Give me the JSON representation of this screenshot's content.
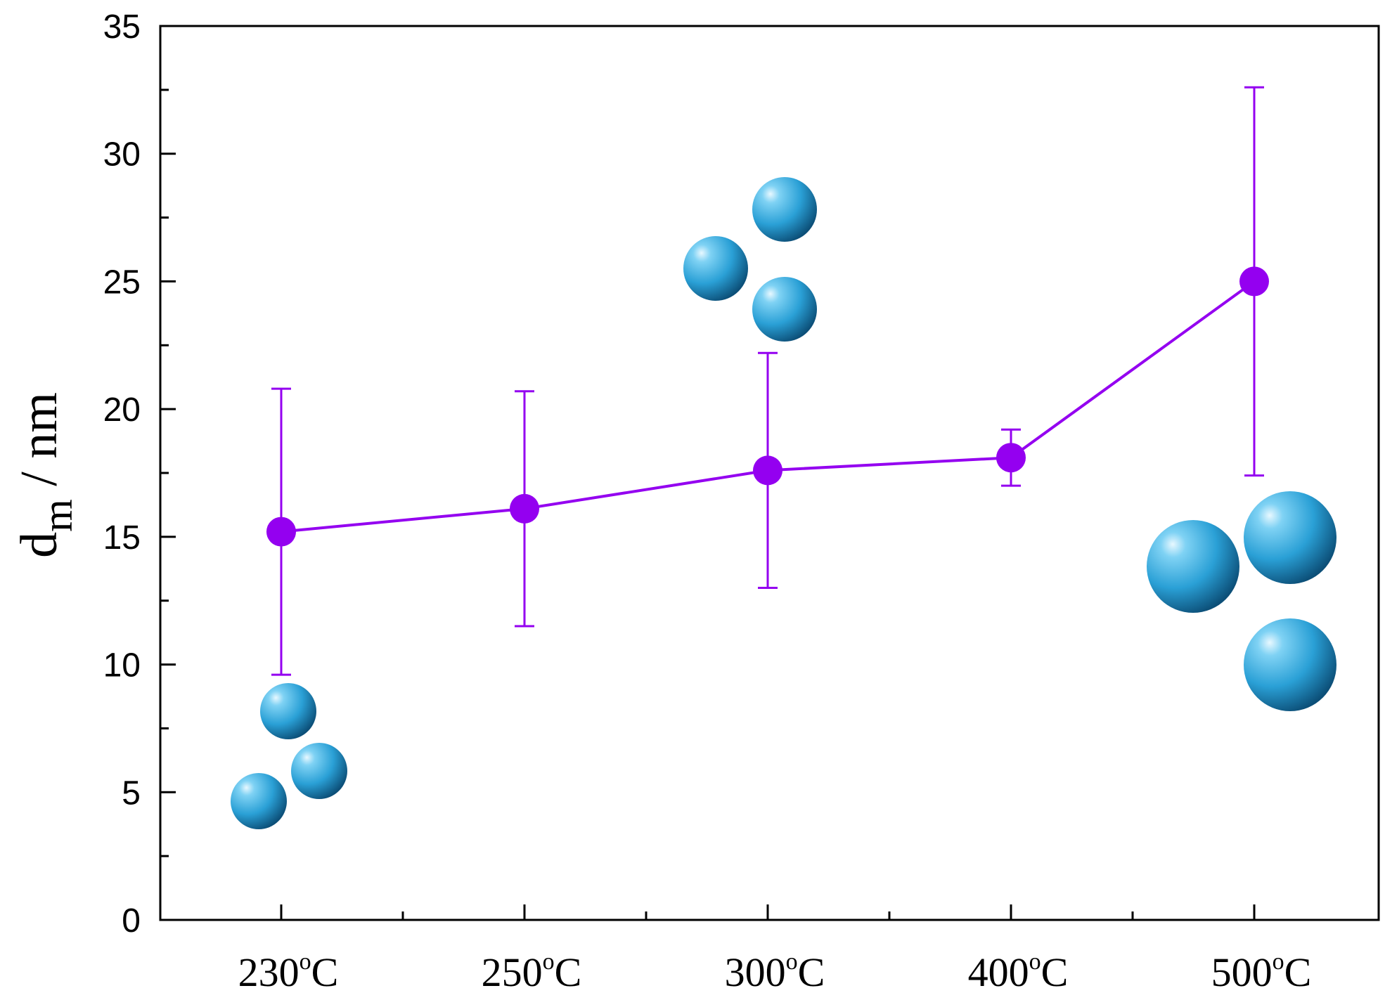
{
  "chart_data": {
    "type": "line",
    "title": "",
    "xlabel": "",
    "ylabel": {
      "base": "d",
      "subscript": "m",
      "suffix": " / nm"
    },
    "categories": [
      {
        "value": "230",
        "superscript": "o",
        "unit": "C"
      },
      {
        "value": "250",
        "superscript": "o",
        "unit": "C"
      },
      {
        "value": "300",
        "superscript": "o",
        "unit": "C"
      },
      {
        "value": "400",
        "superscript": "o",
        "unit": "C"
      },
      {
        "value": "500",
        "superscript": "o",
        "unit": "C"
      }
    ],
    "series": [
      {
        "name": "d_m",
        "values": [
          15.2,
          16.1,
          17.6,
          18.1,
          25.0
        ],
        "error_upper": [
          20.8,
          20.7,
          22.2,
          19.2,
          32.6
        ],
        "error_lower": [
          9.6,
          11.5,
          13.0,
          17.0,
          17.4
        ]
      }
    ],
    "ylim": [
      0,
      35
    ],
    "yticks": [
      "0",
      "5",
      "10",
      "15",
      "20",
      "25",
      "30",
      "35"
    ],
    "grid": false,
    "legend": "none",
    "colors": {
      "series": "#9400f0",
      "sphere": "#2aa6dc",
      "axis": "#000000"
    }
  }
}
